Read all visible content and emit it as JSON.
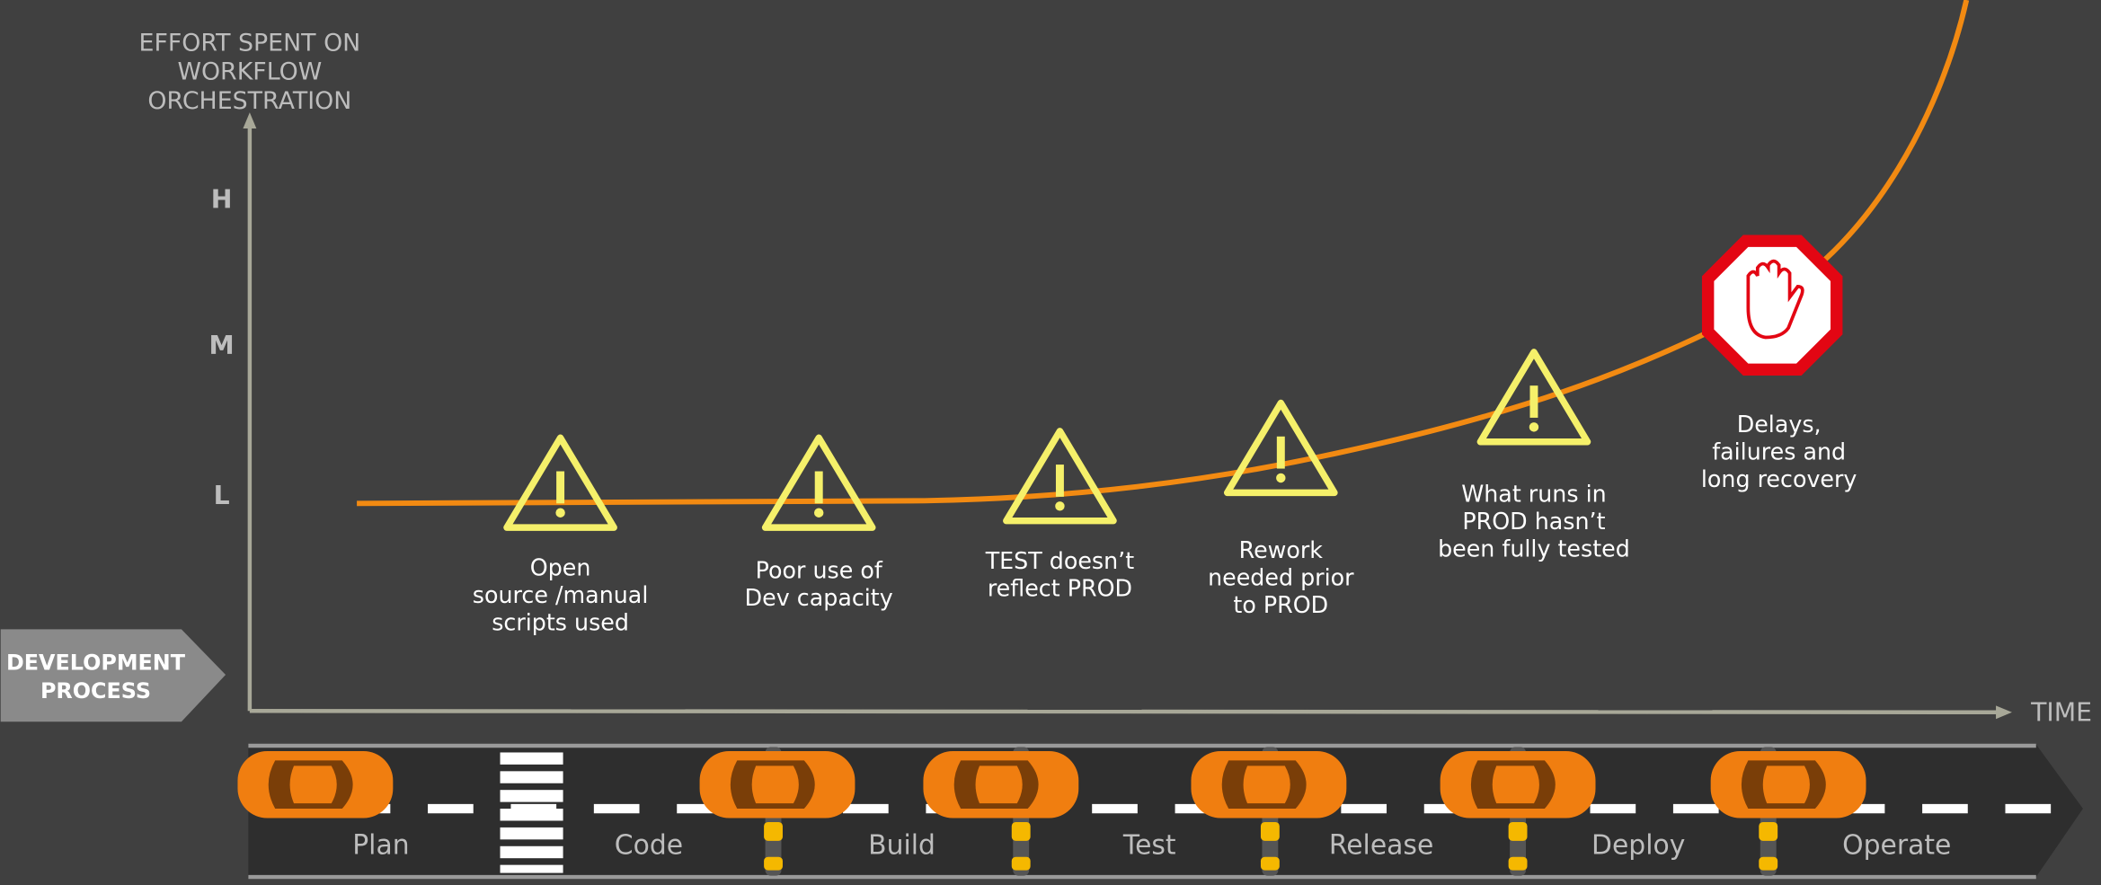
{
  "axis": {
    "y_label_lines": [
      "EFFORT SPENT ON",
      "WORKFLOW",
      "ORCHESTRATION"
    ],
    "ticks": [
      "H",
      "M",
      "L"
    ],
    "x_label": "TIME"
  },
  "process_label_lines": [
    "DEVELOPMENT",
    "PROCESS"
  ],
  "warnings": [
    {
      "lines": [
        "Open",
        "source /manual",
        "scripts used"
      ]
    },
    {
      "lines": [
        "Poor use of",
        "Dev capacity"
      ]
    },
    {
      "lines": [
        "TEST doesn’t",
        "reflect PROD"
      ]
    },
    {
      "lines": [
        "Rework",
        "needed prior",
        "to PROD"
      ]
    },
    {
      "lines": [
        "What runs in",
        "PROD hasn’t",
        "been fully tested"
      ]
    }
  ],
  "stop": {
    "lines": [
      "Delays,",
      "failures and",
      "long recovery"
    ]
  },
  "stages": [
    "Plan",
    "Code",
    "Build",
    "Test",
    "Release",
    "Deploy",
    "Operate"
  ]
}
